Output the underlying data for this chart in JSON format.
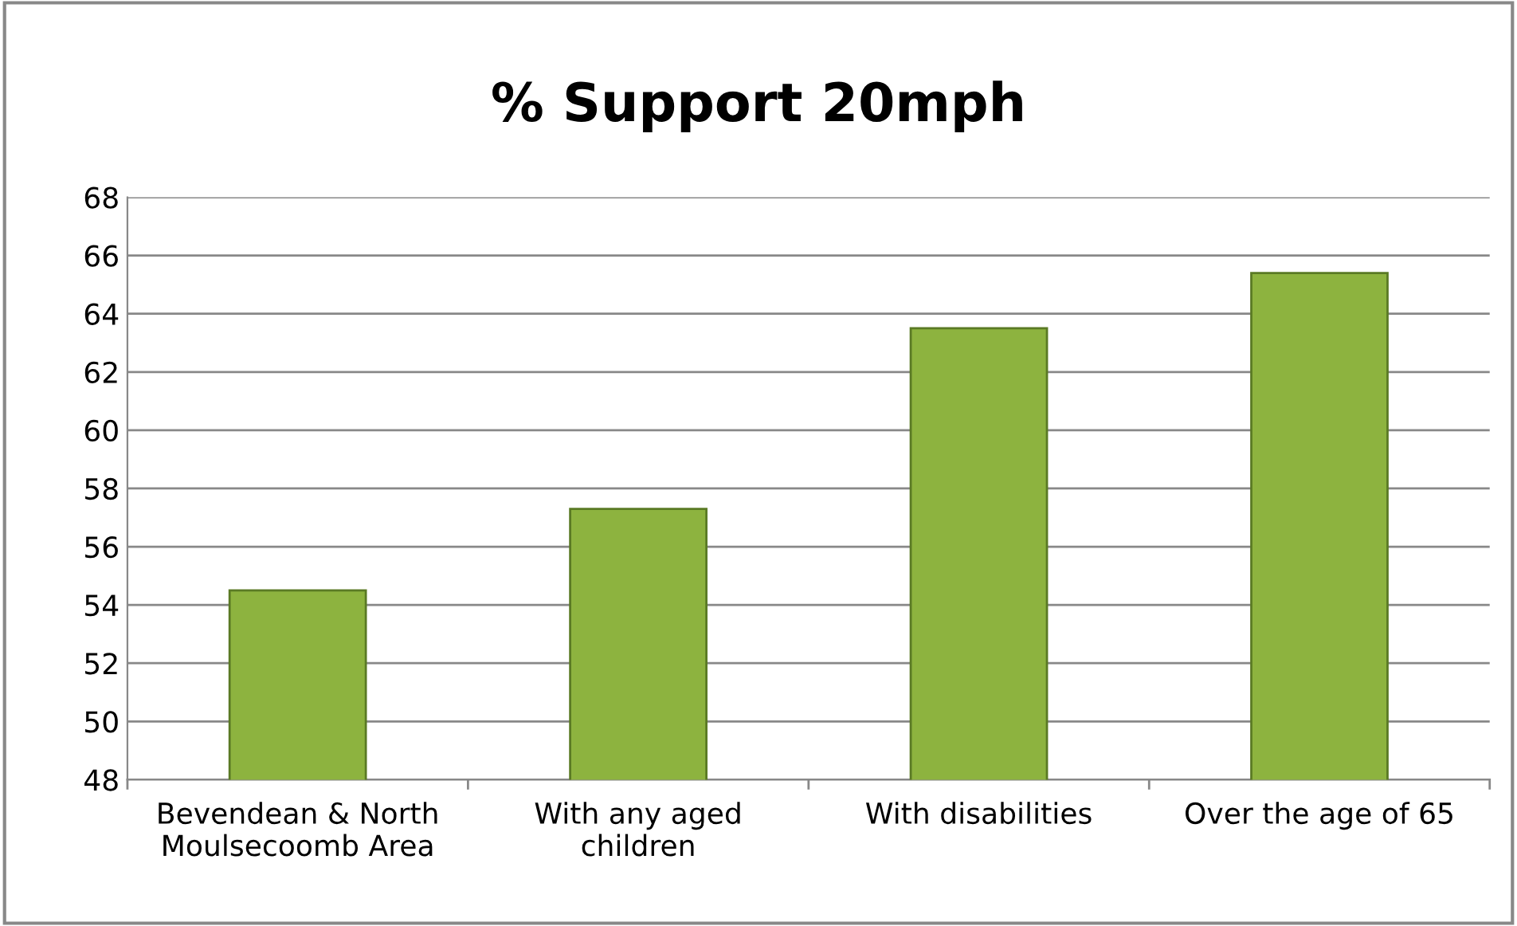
{
  "chart_data": {
    "type": "bar",
    "title": "% Support 20mph",
    "categories": [
      "Bevendean & North\nMoulsecoomb Area",
      "With any aged\nchildren",
      "With disabilities",
      "Over the age of 65"
    ],
    "values": [
      54.5,
      57.3,
      63.5,
      65.4
    ],
    "color": "#8db33f",
    "ylim": [
      48,
      68
    ],
    "yticks": [
      48,
      50,
      52,
      54,
      56,
      58,
      60,
      62,
      64,
      66,
      68
    ],
    "grid": "y",
    "legend": false
  }
}
